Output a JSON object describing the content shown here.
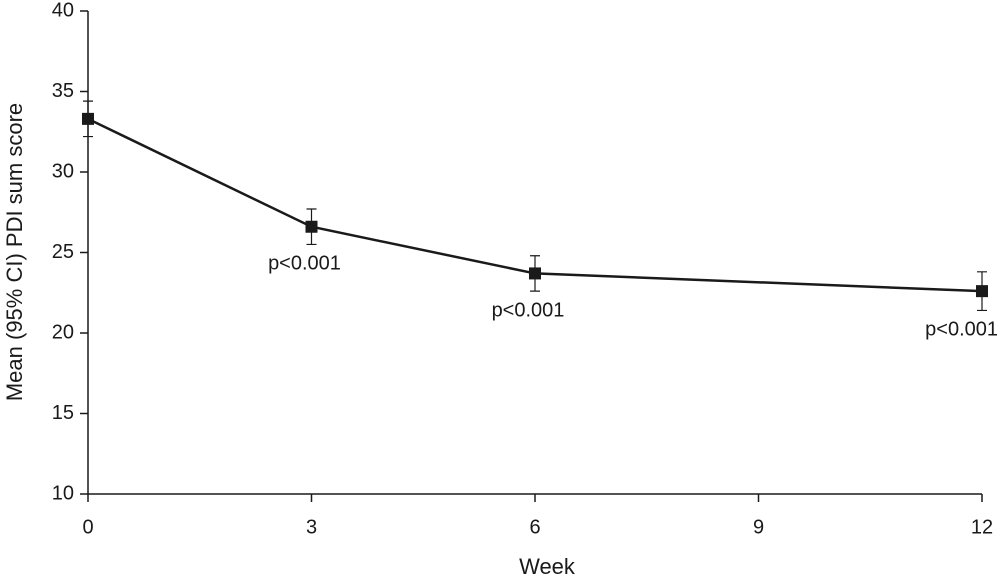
{
  "chart_data": {
    "type": "line",
    "x_label": "Week",
    "y_label": "Mean (95% CI) PDI sum score",
    "x": [
      0,
      3,
      6,
      12
    ],
    "series": [
      {
        "color": "#1a1a1a",
        "values": [
          33.3,
          26.6,
          23.7,
          22.6
        ],
        "errors": [
          1.1,
          1.1,
          1.1,
          1.2
        ]
      }
    ],
    "annotations": [
      {
        "text": "p<0.001",
        "x": 3
      },
      {
        "text": "p<0.001",
        "x": 6
      },
      {
        "text": "p<0.001",
        "x": 12
      }
    ],
    "xlim": [
      0,
      12
    ],
    "xticks": [
      0,
      3,
      6,
      9,
      12
    ],
    "ylim": [
      10,
      40
    ],
    "yticks": [
      10,
      15,
      20,
      25,
      30,
      35,
      40
    ],
    "grid": false
  }
}
